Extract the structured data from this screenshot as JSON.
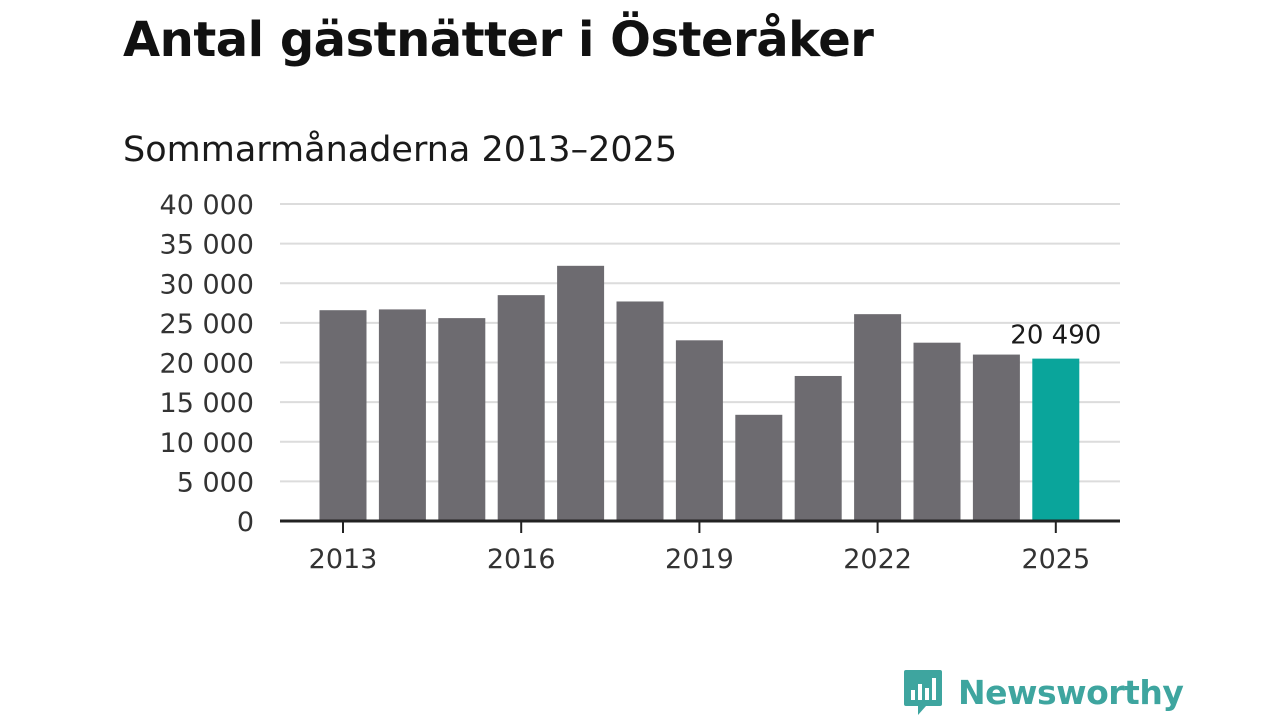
{
  "title": "Antal gästnätter i Österåker",
  "subtitle": "Sommarmånaderna 2013–2025",
  "colors": {
    "bar": "#6d6b70",
    "highlight": "#0aa59b",
    "grid": "#dcdcdc",
    "axis": "#222222",
    "brand": "#3ea59f"
  },
  "brand": {
    "name": "Newsworthy",
    "icon": "bar-chart-speech-bubble-icon"
  },
  "chart_data": {
    "type": "bar",
    "categories": [
      "2013",
      "2014",
      "2015",
      "2016",
      "2017",
      "2018",
      "2019",
      "2020",
      "2021",
      "2022",
      "2023",
      "2024",
      "2025"
    ],
    "values": [
      26600,
      26700,
      25600,
      28500,
      32200,
      27700,
      22800,
      13400,
      18300,
      26100,
      22500,
      21000,
      20490
    ],
    "highlight_index": 12,
    "highlight_label": "20 490",
    "x_tick_labels": [
      "2013",
      "2016",
      "2019",
      "2022",
      "2025"
    ],
    "y_tick_labels": [
      "0",
      "5 000",
      "10 000",
      "15 000",
      "20 000",
      "25 000",
      "30 000",
      "35 000",
      "40 000"
    ],
    "y_ticks": [
      0,
      5000,
      10000,
      15000,
      20000,
      25000,
      30000,
      35000,
      40000
    ],
    "ylim": [
      0,
      40000
    ],
    "grid": true,
    "legend": "none"
  }
}
